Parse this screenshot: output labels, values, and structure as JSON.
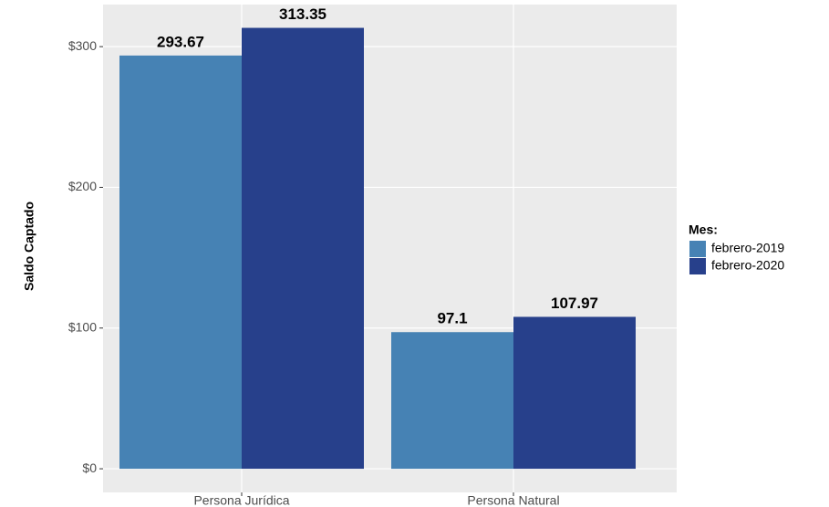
{
  "chart_data": {
    "type": "bar",
    "y_label": "Saldo Captado",
    "categories": [
      "Persona Jurídica",
      "Persona Natural"
    ],
    "legend_title": "Mes:",
    "legend_position": "right",
    "series": [
      {
        "name": "febrero-2019",
        "color": "#4682b4",
        "values": [
          293.67,
          97.1
        ]
      },
      {
        "name": "febrero-2020",
        "color": "#27408b",
        "values": [
          313.35,
          107.97
        ]
      }
    ],
    "ylim": [
      -16.8,
      329.9
    ],
    "yticks": [
      {
        "value": 0,
        "label": "$0"
      },
      {
        "value": 100,
        "label": "$100"
      },
      {
        "value": 200,
        "label": "$200"
      },
      {
        "value": 300,
        "label": "$300"
      }
    ],
    "grid": true
  }
}
